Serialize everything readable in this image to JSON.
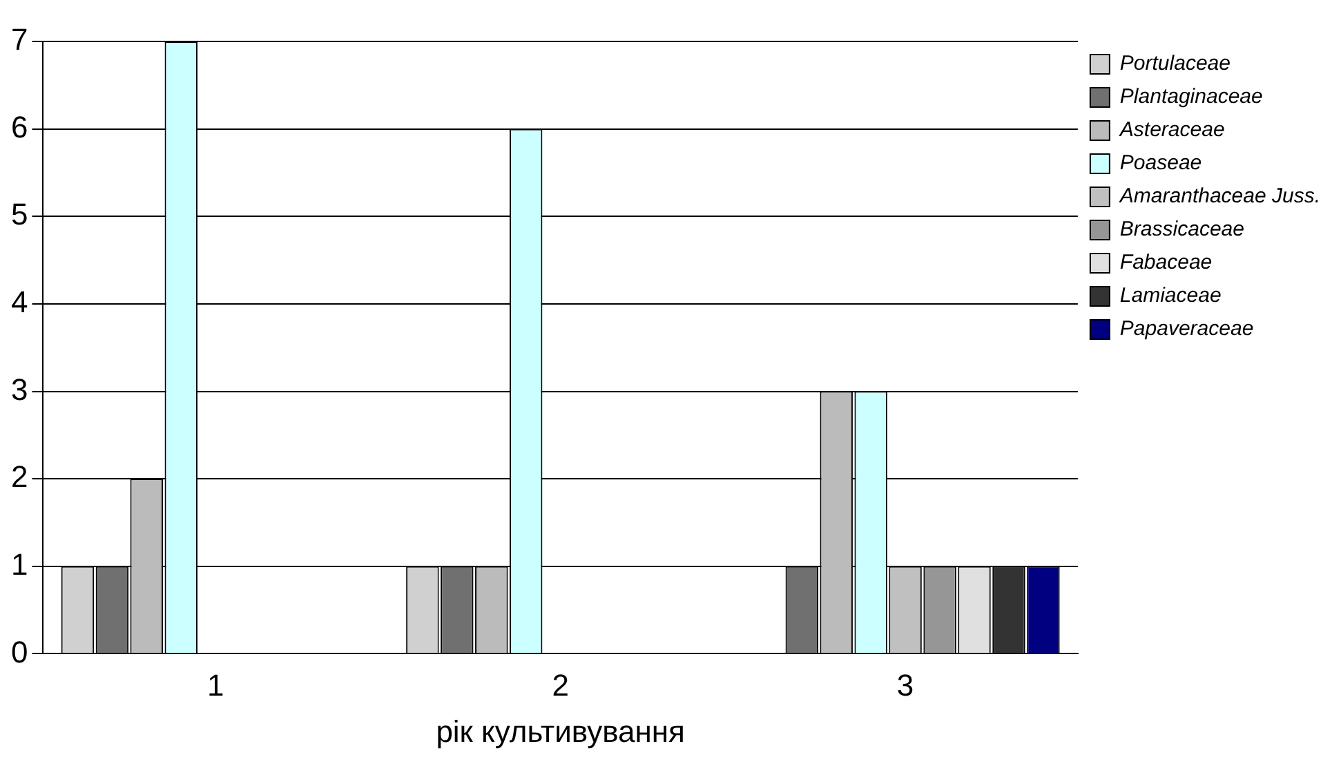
{
  "chart_data": {
    "type": "bar",
    "xlabel": "рік культивування",
    "categories": [
      "1",
      "2",
      "3"
    ],
    "series": [
      {
        "name": "Portulaceae",
        "color": "#d0d0d0",
        "values": [
          1,
          1,
          null
        ]
      },
      {
        "name": "Plantaginaceae",
        "color": "#707070",
        "values": [
          1,
          1,
          1
        ]
      },
      {
        "name": "Asteraceae",
        "color": "#bbbbbb",
        "values": [
          2,
          1,
          3
        ]
      },
      {
        "name": "Poaseae",
        "color": "#ccffff",
        "values": [
          7,
          6,
          3
        ]
      },
      {
        "name": "Amaranthaceae Juss.",
        "color": "#c0c0c0",
        "values": [
          null,
          null,
          1
        ]
      },
      {
        "name": "Brassicaceae",
        "color": "#969696",
        "values": [
          null,
          null,
          1
        ]
      },
      {
        "name": "Fabaceae",
        "color": "#e0e0e0",
        "values": [
          null,
          null,
          1
        ]
      },
      {
        "name": "Lamiaceae",
        "color": "#333333",
        "values": [
          null,
          null,
          1
        ]
      },
      {
        "name": "Papaveraceae",
        "color": "#000080",
        "values": [
          null,
          null,
          1
        ]
      }
    ],
    "ylim": [
      0,
      7
    ],
    "yticks": [
      0,
      1,
      2,
      3,
      4,
      5,
      6,
      7
    ],
    "grid": "y",
    "legend": "top right"
  }
}
